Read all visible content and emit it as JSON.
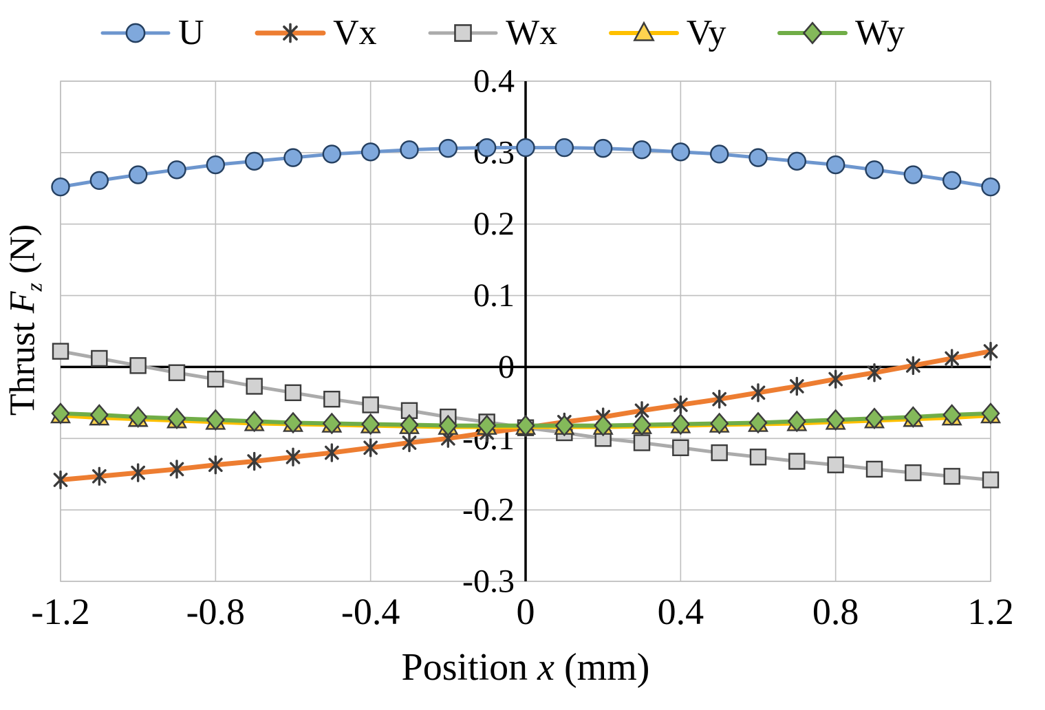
{
  "chart_data": {
    "type": "line",
    "title": "",
    "xlabel": {
      "pre": "Position ",
      "var": "x",
      "post": " (mm)"
    },
    "ylabel": {
      "pre": "Thrust ",
      "var": "F",
      "sub": "z",
      "post": " (N)"
    },
    "xlim": [
      -1.2,
      1.2
    ],
    "ylim": [
      -0.3,
      0.4
    ],
    "grid": true,
    "legend_position": "top",
    "x_ticks": [
      -1.2,
      -0.8,
      -0.4,
      0,
      0.4,
      0.8,
      1.2
    ],
    "x_tick_labels": [
      "-1.2",
      "-0.8",
      "-0.4",
      "0",
      "0.4",
      "0.8",
      "1.2"
    ],
    "y_ticks": [
      -0.3,
      -0.2,
      -0.1,
      0,
      0.1,
      0.2,
      0.3,
      0.4
    ],
    "y_tick_labels": [
      "-0.3",
      "-0.2",
      "-0.1",
      "0",
      "0.1",
      "0.2",
      "0.3",
      "0.4"
    ],
    "x": [
      -1.2,
      -1.1,
      -1.0,
      -0.9,
      -0.8,
      -0.7,
      -0.6,
      -0.5,
      -0.4,
      -0.3,
      -0.2,
      -0.1,
      0,
      0.1,
      0.2,
      0.3,
      0.4,
      0.5,
      0.6,
      0.7,
      0.8,
      0.9,
      1.0,
      1.1,
      1.2
    ],
    "series": [
      {
        "name": "U",
        "marker": "circle",
        "color": "#6D96CE",
        "marker_fill": "#7FA8DC",
        "marker_stroke": "#243F60",
        "width": 5,
        "values": [
          0.252,
          0.261,
          0.269,
          0.276,
          0.283,
          0.288,
          0.293,
          0.298,
          0.301,
          0.304,
          0.306,
          0.307,
          0.307,
          0.307,
          0.306,
          0.304,
          0.301,
          0.298,
          0.293,
          0.288,
          0.283,
          0.276,
          0.269,
          0.261,
          0.252
        ]
      },
      {
        "name": "Vx",
        "marker": "asterisk",
        "color": "#ED7D31",
        "marker_fill": "none",
        "marker_stroke": "#3B3B3B",
        "width": 7,
        "values": [
          -0.158,
          -0.153,
          -0.148,
          -0.143,
          -0.137,
          -0.132,
          -0.126,
          -0.12,
          -0.113,
          -0.106,
          -0.1,
          -0.092,
          -0.085,
          -0.077,
          -0.07,
          -0.061,
          -0.053,
          -0.045,
          -0.036,
          -0.027,
          -0.017,
          -0.008,
          0.002,
          0.012,
          0.022
        ]
      },
      {
        "name": "Wx",
        "marker": "square",
        "color": "#ABABAB",
        "marker_fill": "#D2D2D2",
        "marker_stroke": "#3B3B3B",
        "width": 5,
        "values": [
          0.022,
          0.012,
          0.002,
          -0.008,
          -0.017,
          -0.027,
          -0.036,
          -0.045,
          -0.053,
          -0.061,
          -0.07,
          -0.077,
          -0.085,
          -0.092,
          -0.1,
          -0.106,
          -0.113,
          -0.12,
          -0.126,
          -0.132,
          -0.137,
          -0.143,
          -0.148,
          -0.153,
          -0.158
        ]
      },
      {
        "name": "Vy",
        "marker": "triangle",
        "color": "#FFC000",
        "marker_fill": "#FFD34F",
        "marker_stroke": "#3B3B3B",
        "width": 6,
        "values": [
          -0.068,
          -0.071,
          -0.073,
          -0.075,
          -0.077,
          -0.079,
          -0.08,
          -0.081,
          -0.082,
          -0.083,
          -0.084,
          -0.084,
          -0.084,
          -0.084,
          -0.084,
          -0.083,
          -0.082,
          -0.081,
          -0.08,
          -0.079,
          -0.077,
          -0.075,
          -0.073,
          -0.071,
          -0.068
        ]
      },
      {
        "name": "Wy",
        "marker": "diamond",
        "color": "#70AD47",
        "marker_fill": "#84B95A",
        "marker_stroke": "#3B3B3B",
        "width": 6,
        "values": [
          -0.065,
          -0.067,
          -0.07,
          -0.072,
          -0.074,
          -0.076,
          -0.078,
          -0.079,
          -0.08,
          -0.081,
          -0.082,
          -0.082,
          -0.082,
          -0.082,
          -0.082,
          -0.081,
          -0.08,
          -0.079,
          -0.078,
          -0.076,
          -0.074,
          -0.072,
          -0.07,
          -0.067,
          -0.065
        ]
      }
    ]
  }
}
